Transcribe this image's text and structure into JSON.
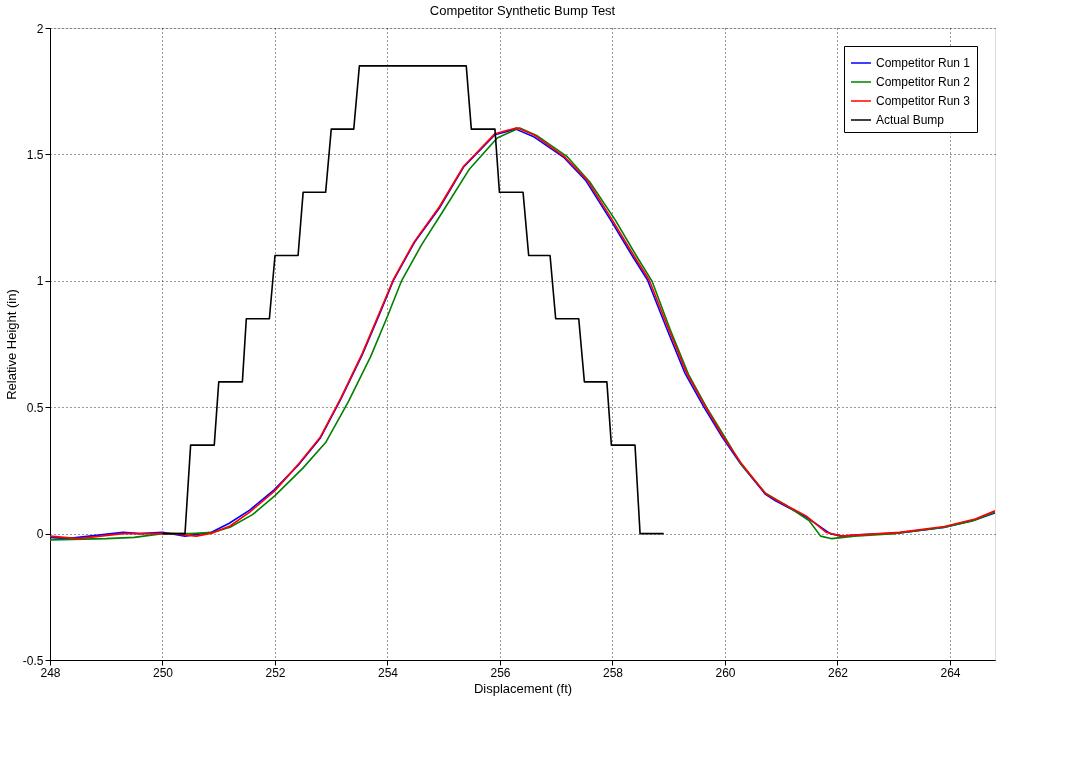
{
  "chart_data": {
    "type": "line",
    "title": "Competitor Synthetic Bump Test",
    "xlabel": "Displacement (ft)",
    "ylabel": "Relative Height (in)",
    "xlim": [
      248,
      264.8
    ],
    "ylim": [
      -0.5,
      2
    ],
    "xticks": [
      248,
      250,
      252,
      254,
      256,
      258,
      260,
      262,
      264
    ],
    "yticks": [
      -0.5,
      0,
      0.5,
      1,
      1.5,
      2
    ],
    "grid": true,
    "legend": "top right",
    "line_style": "solid",
    "series": [
      {
        "name": "Competitor Run 1",
        "color": "#0000ff",
        "x": [
          248,
          248.3,
          249.3,
          249.6,
          250,
          250.4,
          250.7,
          250.87,
          251.18,
          251.55,
          251.99,
          252.43,
          252.8,
          253.17,
          253.55,
          253.86,
          254.11,
          254.48,
          254.92,
          255.35,
          255.91,
          256.28,
          256.59,
          257.14,
          257.52,
          257.96,
          258.35,
          258.62,
          258.96,
          259.29,
          259.62,
          259.95,
          260.28,
          260.72,
          260.89,
          261.44,
          261.87,
          262.09,
          262.36,
          263.07,
          263.89,
          264.44,
          264.8
        ],
        "values": [
          -0.015,
          -0.02,
          0.005,
          0,
          0.005,
          -0.01,
          0,
          0.005,
          0.04,
          0.093,
          0.174,
          0.275,
          0.376,
          0.532,
          0.707,
          0.869,
          1.004,
          1.152,
          1.287,
          1.449,
          1.578,
          1.6,
          1.571,
          1.487,
          1.398,
          1.243,
          1.099,
          1.004,
          0.813,
          0.634,
          0.502,
          0.382,
          0.275,
          0.155,
          0.131,
          0.066,
          0,
          -0.01,
          -0.005,
          0.002,
          0.024,
          0.054,
          0.082
        ]
      },
      {
        "name": "Competitor Run 2",
        "color": "#008000",
        "x": [
          248,
          249,
          249.5,
          250,
          250.5,
          250.9,
          251.2,
          251.6,
          252,
          252.5,
          252.9,
          253.3,
          253.7,
          254,
          254.25,
          254.6,
          255,
          255.45,
          255.95,
          256.35,
          256.65,
          257.2,
          257.6,
          258.05,
          258.42,
          258.7,
          259.02,
          259.35,
          259.67,
          260,
          260.3,
          260.72,
          261.1,
          261.5,
          261.7,
          261.9,
          262.3,
          263,
          263.9,
          264.4,
          264.8
        ],
        "values": [
          -0.025,
          -0.02,
          -0.015,
          0,
          0,
          0.005,
          0.025,
          0.075,
          0.15,
          0.26,
          0.36,
          0.52,
          0.7,
          0.86,
          1,
          1.14,
          1.28,
          1.44,
          1.565,
          1.605,
          1.575,
          1.49,
          1.39,
          1.24,
          1.1,
          1,
          0.81,
          0.63,
          0.5,
          0.38,
          0.27,
          0.16,
          0.11,
          0.05,
          -0.01,
          -0.02,
          -0.01,
          0,
          0.025,
          0.05,
          0.085
        ]
      },
      {
        "name": "Competitor Run 3",
        "color": "#ff0000",
        "x": [
          248,
          248.5,
          249.3,
          249.8,
          250.2,
          250.6,
          250.9,
          251.2,
          251.55,
          252,
          252.43,
          252.8,
          253.17,
          253.55,
          253.86,
          254.11,
          254.48,
          254.92,
          255.35,
          255.91,
          256.3,
          256.6,
          257.16,
          257.55,
          257.99,
          258.38,
          258.65,
          258.99,
          259.32,
          259.65,
          259.97,
          260.3,
          260.72,
          260.9,
          261.44,
          261.8,
          262.05,
          262.4,
          263.1,
          263.9,
          264.45,
          264.8
        ],
        "values": [
          -0.01,
          -0.02,
          0,
          0,
          0,
          -0.01,
          0.003,
          0.03,
          0.085,
          0.17,
          0.278,
          0.38,
          0.536,
          0.712,
          0.875,
          1.008,
          1.156,
          1.292,
          1.452,
          1.582,
          1.605,
          1.578,
          1.488,
          1.398,
          1.243,
          1.099,
          1.004,
          0.813,
          0.634,
          0.502,
          0.382,
          0.275,
          0.158,
          0.134,
          0.07,
          0.005,
          -0.01,
          -0.005,
          0.005,
          0.028,
          0.058,
          0.09
        ]
      },
      {
        "name": "Actual Bump",
        "color": "#000000",
        "x": [
          250,
          250.4,
          250.5,
          250.92,
          251,
          251.42,
          251.49,
          251.9,
          252,
          252.41,
          252.5,
          252.9,
          253,
          253.4,
          253.5,
          255.4,
          255.49,
          255.91,
          255.99,
          256.41,
          256.51,
          256.89,
          256.99,
          257.4,
          257.5,
          257.9,
          257.98,
          258.4,
          258.49,
          258.91
        ],
        "values": [
          0,
          0,
          0.35,
          0.35,
          0.6,
          0.6,
          0.85,
          0.85,
          1.1,
          1.1,
          1.35,
          1.35,
          1.6,
          1.6,
          1.85,
          1.85,
          1.6,
          1.6,
          1.35,
          1.35,
          1.1,
          1.1,
          0.85,
          0.85,
          0.6,
          0.6,
          0.35,
          0.35,
          0,
          0
        ]
      }
    ]
  }
}
